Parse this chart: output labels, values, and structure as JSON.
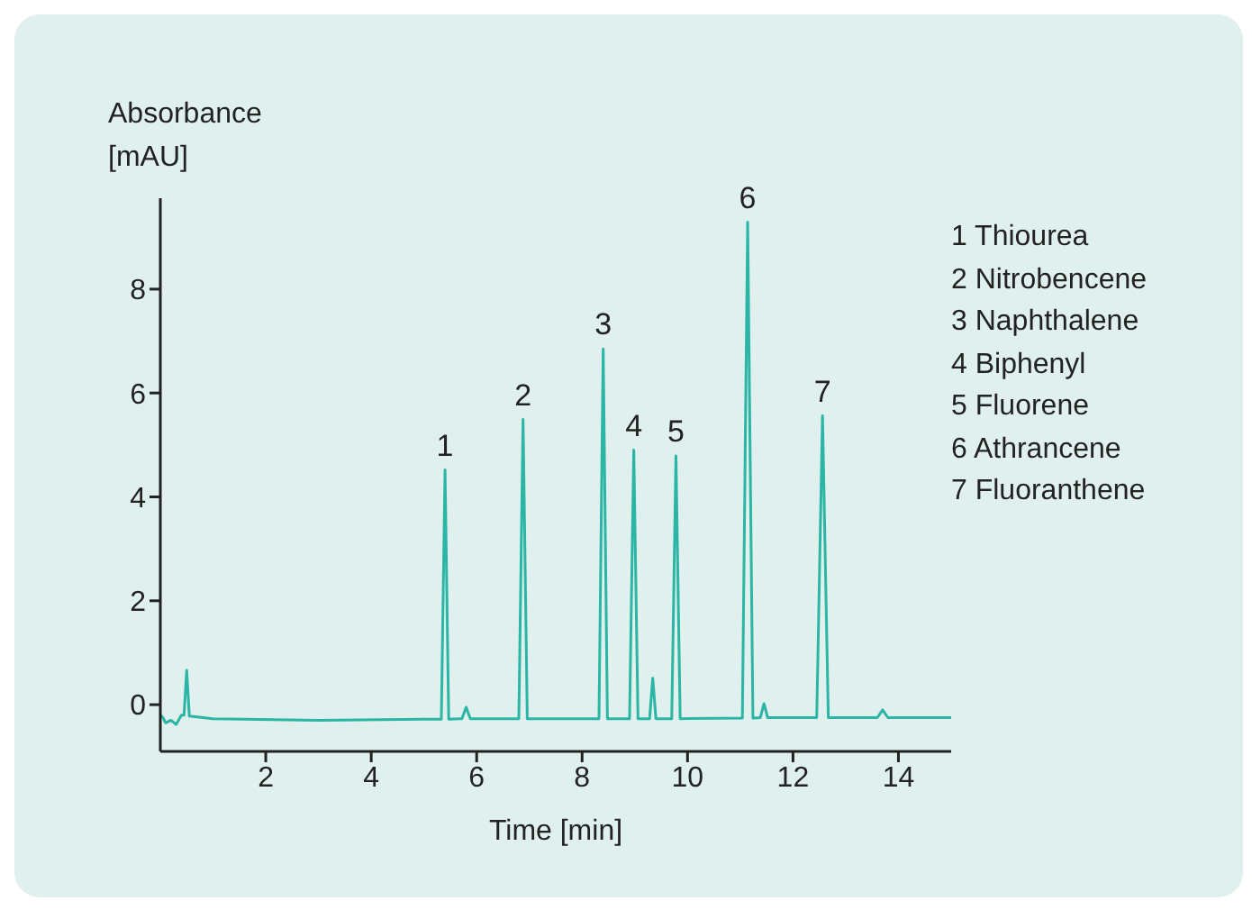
{
  "chart_data": {
    "type": "line",
    "xlabel": "Time [min]",
    "ylabel": "Absorbance\n[mAU]",
    "marker": "none",
    "x": [
      0,
      0.05,
      0.1,
      0.2,
      0.3,
      0.4,
      0.45,
      0.5,
      0.55,
      1,
      3,
      5,
      5.33,
      5.4,
      5.47,
      5.72,
      5.8,
      5.88,
      6.8,
      6.88,
      6.96,
      8.32,
      8.4,
      8.48,
      8.9,
      8.98,
      9.06,
      9.28,
      9.34,
      9.4,
      9.7,
      9.78,
      9.86,
      11.04,
      11.14,
      11.24,
      11.38,
      11.45,
      11.52,
      12.45,
      12.56,
      12.67,
      13.6,
      13.7,
      13.8,
      15
    ],
    "series": [
      {
        "color": "#2ab5a5",
        "values": [
          -0.2,
          -0.25,
          -0.35,
          -0.3,
          -0.38,
          -0.2,
          -0.2,
          0.66,
          -0.22,
          -0.27,
          -0.3,
          -0.28,
          -0.28,
          4.52,
          -0.28,
          -0.27,
          -0.05,
          -0.27,
          -0.27,
          5.49,
          -0.27,
          -0.27,
          6.85,
          -0.27,
          -0.27,
          4.9,
          -0.27,
          -0.27,
          0.51,
          -0.27,
          -0.27,
          4.79,
          -0.27,
          -0.26,
          9.29,
          -0.26,
          -0.25,
          0.02,
          -0.25,
          -0.25,
          5.56,
          -0.25,
          -0.25,
          -0.1,
          -0.25,
          -0.25
        ]
      }
    ],
    "xlim": [
      0,
      15
    ],
    "xticks": [
      2,
      4,
      6,
      8,
      10,
      12,
      14
    ],
    "ylim": [
      -0.9,
      9.75
    ],
    "yticks": [
      0,
      2,
      4,
      6,
      8
    ],
    "annotations": [
      {
        "text": "1",
        "x": 5.4,
        "y": 4.52
      },
      {
        "text": "2",
        "x": 6.88,
        "y": 5.49
      },
      {
        "text": "3",
        "x": 8.4,
        "y": 6.85
      },
      {
        "text": "4",
        "x": 8.98,
        "y": 4.9
      },
      {
        "text": "5",
        "x": 9.78,
        "y": 4.79
      },
      {
        "text": "6",
        "x": 11.14,
        "y": 9.29
      },
      {
        "text": "7",
        "x": 12.56,
        "y": 5.56
      },
      "1 Thiourea",
      "2 Nitrobencene",
      "3 Naphthalene",
      "4 Biphenyl",
      "5 Fluorene",
      "6 Athrancene",
      "7 Fluoranthene"
    ]
  }
}
